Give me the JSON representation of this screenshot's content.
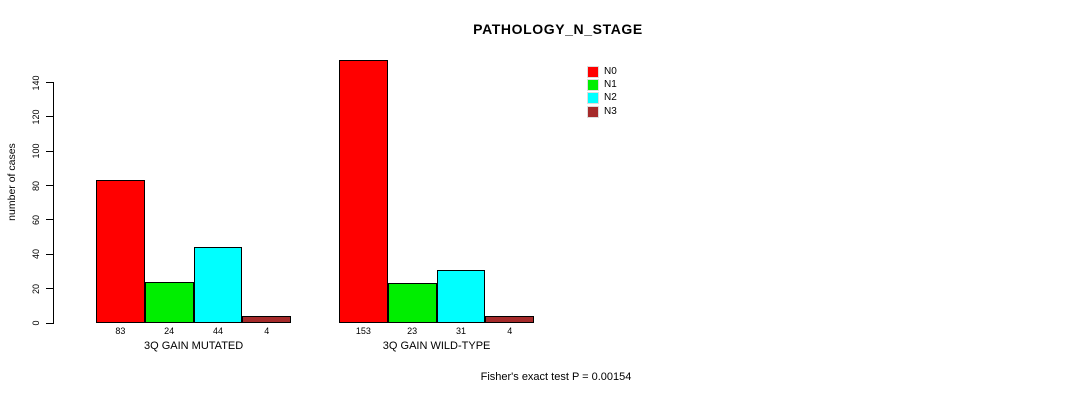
{
  "chart": {
    "title": "PATHOLOGY_N_STAGE",
    "ylabel": "number of cases",
    "annotation": "Fisher's exact test P = 0.00154"
  },
  "chart_data": {
    "type": "bar",
    "title": "PATHOLOGY_N_STAGE",
    "xlabel": "",
    "ylabel": "number of cases",
    "ylim": [
      0,
      140
    ],
    "yticks": [
      0,
      20,
      40,
      60,
      80,
      100,
      120,
      140
    ],
    "grid": false,
    "legend_position": "top-right",
    "categories": [
      "3Q GAIN MUTATED",
      "3Q GAIN WILD-TYPE"
    ],
    "series": [
      {
        "name": "N0",
        "color": "#FF0000",
        "values": [
          83,
          153
        ]
      },
      {
        "name": "N1",
        "color": "#00EE00",
        "values": [
          24,
          23
        ]
      },
      {
        "name": "N2",
        "color": "#00FFFF",
        "values": [
          44,
          31
        ]
      },
      {
        "name": "N3",
        "color": "#A52A2A",
        "values": [
          4,
          4
        ]
      }
    ],
    "bar_value_labels": [
      [
        83,
        24,
        44,
        4
      ],
      [
        153,
        23,
        31,
        4
      ]
    ],
    "annotation": "Fisher's exact test P = 0.00154"
  }
}
